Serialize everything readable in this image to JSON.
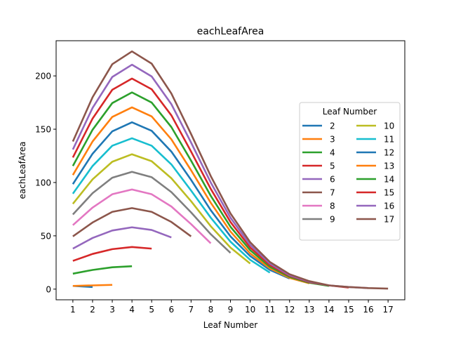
{
  "chart_data": {
    "type": "line",
    "title": "eachLeafArea",
    "xlabel": "Leaf Number",
    "ylabel": "eachLeafArea",
    "xlim": [
      0.15,
      17.85
    ],
    "ylim": [
      -10,
      233
    ],
    "x_ticks": [
      1,
      2,
      3,
      4,
      5,
      6,
      7,
      8,
      9,
      10,
      11,
      12,
      13,
      14,
      15,
      16,
      17
    ],
    "y_ticks": [
      0,
      50,
      100,
      150,
      200
    ],
    "grid": false,
    "legend": {
      "title": "Leaf Number",
      "placement": "center-right",
      "columns": 2
    },
    "series": [
      {
        "name": "2",
        "color": "#1f77b4",
        "x": [
          1,
          2
        ],
        "y": [
          3,
          2
        ]
      },
      {
        "name": "3",
        "color": "#ff7f0e",
        "x": [
          1,
          2,
          3
        ],
        "y": [
          3,
          3.5,
          4
        ]
      },
      {
        "name": "4",
        "color": "#2ca02c",
        "x": [
          1,
          2,
          3,
          4
        ],
        "y": [
          14.5,
          18,
          20.5,
          21.5
        ]
      },
      {
        "name": "5",
        "color": "#d62728",
        "x": [
          1,
          2,
          3,
          4,
          5
        ],
        "y": [
          26.5,
          33,
          37.5,
          39.5,
          38
        ]
      },
      {
        "name": "6",
        "color": "#9467bd",
        "x": [
          1,
          2,
          3,
          4,
          5,
          6
        ],
        "y": [
          38,
          48,
          55,
          58,
          55.5,
          48.5
        ]
      },
      {
        "name": "7",
        "color": "#8c564b",
        "x": [
          1,
          2,
          3,
          4,
          5,
          6,
          7
        ],
        "y": [
          49.5,
          62.5,
          72.5,
          76,
          72.5,
          63,
          49.5
        ]
      },
      {
        "name": "8",
        "color": "#e377c2",
        "x": [
          1,
          2,
          3,
          4,
          5,
          6,
          7,
          8
        ],
        "y": [
          60,
          76.5,
          89,
          93.5,
          89,
          77.5,
          61,
          43
        ]
      },
      {
        "name": "9",
        "color": "#7f7f7f",
        "x": [
          1,
          2,
          3,
          4,
          5,
          6,
          7,
          8,
          9
        ],
        "y": [
          70,
          90,
          104.5,
          110,
          105,
          91,
          72,
          51.5,
          34
        ]
      },
      {
        "name": "10",
        "color": "#bcbd22",
        "x": [
          1,
          2,
          3,
          4,
          5,
          6,
          7,
          8,
          9,
          10
        ],
        "y": [
          80,
          103,
          119.5,
          126.5,
          120,
          104,
          82.5,
          59,
          39,
          24
        ]
      },
      {
        "name": "11",
        "color": "#17becf",
        "x": [
          1,
          2,
          3,
          4,
          5,
          6,
          7,
          8,
          9,
          10,
          11
        ],
        "y": [
          89.5,
          115.5,
          134.5,
          141.5,
          134.5,
          117,
          92.5,
          67,
          44.5,
          27.5,
          15.5
        ]
      },
      {
        "name": "12",
        "color": "#1f77b4",
        "x": [
          1,
          2,
          3,
          4,
          5,
          6,
          7,
          8,
          9,
          10,
          11,
          12
        ],
        "y": [
          98.5,
          127,
          148,
          156.5,
          148.5,
          129,
          102.5,
          74,
          49.5,
          31,
          18,
          10
        ]
      },
      {
        "name": "13",
        "color": "#ff7f0e",
        "x": [
          1,
          2,
          3,
          4,
          5,
          6,
          7,
          8,
          9,
          10,
          11,
          12,
          13
        ],
        "y": [
          107,
          138.5,
          161.5,
          170.5,
          162,
          140.5,
          111.5,
          81,
          54,
          33.5,
          19.5,
          10.5,
          5.5
        ]
      },
      {
        "name": "14",
        "color": "#2ca02c",
        "x": [
          1,
          2,
          3,
          4,
          5,
          6,
          7,
          8,
          9,
          10,
          11,
          12,
          13,
          14
        ],
        "y": [
          115.5,
          149.5,
          174.5,
          184.5,
          175,
          152,
          120.5,
          87.5,
          58.5,
          36.5,
          21,
          11.5,
          6,
          3
        ]
      },
      {
        "name": "15",
        "color": "#d62728",
        "x": [
          1,
          2,
          3,
          4,
          5,
          6,
          7,
          8,
          9,
          10,
          11,
          12,
          13,
          14,
          15
        ],
        "y": [
          123.5,
          160,
          187,
          197.5,
          187.5,
          163,
          129,
          94,
          63,
          39,
          22.5,
          12.5,
          6.5,
          3.5,
          1.5
        ]
      },
      {
        "name": "16",
        "color": "#9467bd",
        "x": [
          1,
          2,
          3,
          4,
          5,
          6,
          7,
          8,
          9,
          10,
          11,
          12,
          13,
          14,
          15,
          16
        ],
        "y": [
          131,
          170,
          199,
          210.5,
          199.5,
          173.5,
          137.5,
          100,
          67,
          41.5,
          24,
          13,
          7,
          3.5,
          2,
          1
        ]
      },
      {
        "name": "17",
        "color": "#8c564b",
        "x": [
          1,
          2,
          3,
          4,
          5,
          6,
          7,
          8,
          9,
          10,
          11,
          12,
          13,
          14,
          15,
          16,
          17
        ],
        "y": [
          138.5,
          180,
          211,
          223,
          211.5,
          183.5,
          145.5,
          106,
          71,
          44,
          25.5,
          14,
          7.5,
          3.5,
          2,
          1,
          0.5
        ]
      }
    ]
  }
}
